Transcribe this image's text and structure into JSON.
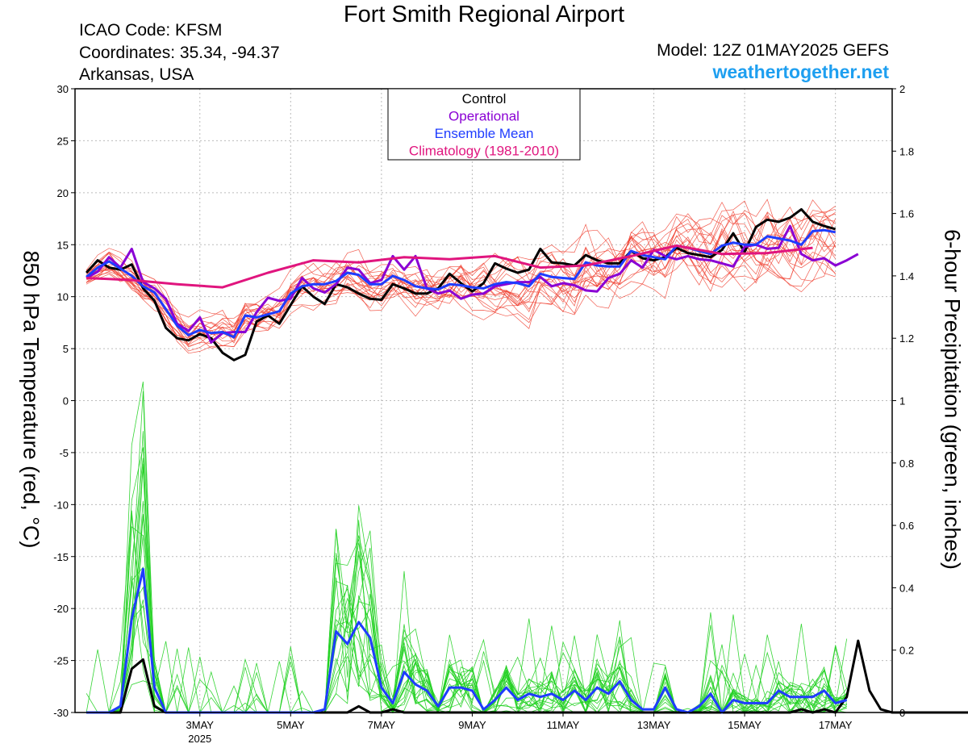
{
  "header": {
    "title": "Fort Smith Regional Airport",
    "icao": "ICAO Code: KFSM",
    "coordinates": "Coordinates: 35.34, -94.37",
    "region": "Arkansas, USA",
    "model": "Model: 12Z 01MAY2025 GEFS",
    "site": "weathertogether.net"
  },
  "chart_data": {
    "type": "line",
    "title": "Fort Smith Regional Airport",
    "ylabel_left": "850 hPa Temperature (red, °C)",
    "ylabel_right": "6-hour Precipitation (green, inches)",
    "ylim_left": [
      -30,
      30
    ],
    "ylim_right": [
      0,
      2
    ],
    "yticks_left": [
      "30",
      "25",
      "20",
      "15",
      "10",
      "5",
      "0",
      "-5",
      "-10",
      "-15",
      "-20",
      "-25",
      "-30"
    ],
    "yticks_right": [
      "2",
      "1.8",
      "1.6",
      "1.4",
      "1.2",
      "1",
      "0.8",
      "0.6",
      "0.4",
      "0.2",
      "0"
    ],
    "x_start": "2025-05-01 12Z",
    "x_step_hours": 6,
    "x_ticks": [
      {
        "label": "3MAY",
        "sub": "2025",
        "hours": 60
      },
      {
        "label": "5MAY",
        "hours": 108
      },
      {
        "label": "7MAY",
        "hours": 156
      },
      {
        "label": "9MAY",
        "hours": 204
      },
      {
        "label": "11MAY",
        "hours": 252
      },
      {
        "label": "13MAY",
        "hours": 300
      },
      {
        "label": "15MAY",
        "hours": 348
      },
      {
        "label": "17MAY",
        "hours": 396
      }
    ],
    "grid": true,
    "legend": {
      "position": "top-center",
      "entries": [
        {
          "label": "Control",
          "color": "#000000"
        },
        {
          "label": "Operational",
          "color": "#8a00d4"
        },
        {
          "label": "Ensemble Mean",
          "color": "#1e3cff"
        },
        {
          "label": "Climatology (1981-2010)",
          "color": "#e0157e"
        }
      ]
    },
    "colors": {
      "members_temp": "#f04030",
      "members_precip": "#20d020"
    },
    "series": [
      {
        "name": "Control",
        "kind": "temp",
        "color": "#000000",
        "values": [
          12.3,
          13.5,
          12.8,
          12.6,
          13.1,
          10.8,
          9.6,
          7.0,
          6.0,
          5.8,
          6.4,
          6.0,
          4.6,
          3.9,
          4.4,
          7.6,
          8.2,
          7.4,
          9.2,
          11.0,
          10.0,
          9.3,
          11.2,
          10.9,
          10.3,
          9.8,
          9.7,
          11.2,
          10.8,
          10.3,
          10.3,
          10.8,
          12.2,
          11.3,
          10.5,
          11.3,
          13.2,
          12.7,
          12.3,
          12.6,
          14.6,
          13.3,
          13.2,
          13.0,
          14.0,
          13.5,
          13.2,
          13.2,
          14.4,
          13.7,
          13.5,
          13.8,
          14.7,
          14.2,
          14.0,
          13.8,
          14.5,
          16.1,
          14.3,
          16.7,
          17.4,
          17.2,
          17.6,
          18.4,
          17.2,
          16.8,
          16.5
        ]
      },
      {
        "name": "Operational",
        "kind": "temp",
        "color": "#8a00d4",
        "values": [
          11.8,
          12.4,
          13.8,
          12.8,
          14.6,
          11.4,
          10.8,
          9.8,
          7.4,
          6.7,
          8.0,
          5.6,
          6.5,
          6.6,
          6.6,
          8.5,
          9.9,
          9.6,
          9.8,
          11.8,
          10.8,
          10.4,
          11.2,
          12.8,
          12.6,
          11.3,
          11.6,
          13.9,
          12.6,
          13.9,
          10.8,
          10.3,
          10.6,
          9.8,
          10.2,
          10.3,
          11.0,
          11.2,
          11.4,
          11.4,
          11.9,
          11.0,
          11.3,
          11.1,
          10.6,
          10.5,
          11.8,
          12.2,
          13.5,
          12.8,
          14.5,
          13.9,
          13.6,
          13.9,
          13.6,
          13.5,
          13.2,
          12.9,
          14.8,
          15.0,
          14.6,
          14.7,
          16.8,
          14.1,
          13.5,
          13.7,
          13.0,
          13.5,
          14.1
        ]
      },
      {
        "name": "Ensemble Mean",
        "kind": "temp",
        "color": "#1e3cff",
        "values": [
          11.9,
          12.8,
          13.4,
          12.7,
          12.0,
          11.0,
          10.4,
          8.8,
          7.2,
          6.3,
          6.8,
          6.5,
          6.6,
          6.1,
          8.2,
          8.0,
          8.3,
          8.6,
          10.3,
          11.0,
          11.2,
          11.2,
          11.5,
          12.3,
          12.1,
          11.2,
          11.2,
          12.0,
          11.6,
          11.0,
          10.8,
          10.7,
          11.2,
          11.1,
          10.9,
          10.8,
          11.2,
          11.4,
          11.3,
          11.0,
          12.2,
          11.9,
          11.8,
          11.7,
          13.3,
          13.0,
          12.9,
          12.9,
          14.4,
          14.0,
          13.8,
          13.6,
          14.9,
          14.7,
          14.4,
          14.1,
          14.9,
          15.2,
          15.0,
          15.0,
          15.8,
          15.6,
          15.4,
          15.0,
          16.3,
          16.4,
          16.2
        ]
      },
      {
        "name": "Climatology (1981-2010)",
        "kind": "temp",
        "color": "#e0157e",
        "values": [
          11.8,
          11.6,
          11.2,
          10.9,
          12.3,
          13.5,
          13.3,
          13.8,
          13.6,
          13.9,
          12.8,
          13.0,
          13.9,
          14.9,
          14.1,
          14.2,
          14.7
        ]
      },
      {
        "name": "Control",
        "kind": "precip",
        "color": "#000000",
        "values": [
          0,
          0,
          0,
          0,
          0.14,
          0.17,
          0.02,
          0,
          0,
          0,
          0,
          0,
          0,
          0,
          0,
          0,
          0,
          0,
          0,
          0,
          0,
          0,
          0,
          0,
          0.02,
          0,
          0,
          0.01,
          0,
          0,
          0,
          0,
          0,
          0,
          0,
          0,
          0,
          0,
          0,
          0,
          0,
          0,
          0,
          0,
          0,
          0,
          0,
          0,
          0,
          0,
          0,
          0,
          0,
          0,
          0,
          0,
          0,
          0,
          0,
          0,
          0,
          0,
          0,
          0.01,
          0,
          0.01,
          0,
          0.05,
          0.23,
          0.07,
          0.01,
          0,
          0,
          0,
          0,
          0,
          0,
          0,
          0,
          0,
          0,
          0,
          0,
          0
        ]
      },
      {
        "name": "Ensemble Mean",
        "kind": "precip",
        "color": "#1e3cff",
        "values": [
          0,
          0,
          0,
          0.02,
          0.3,
          0.46,
          0.08,
          0,
          0,
          0,
          0,
          0,
          0,
          0,
          0,
          0,
          0,
          0,
          0,
          0,
          0,
          0.01,
          0.26,
          0.22,
          0.29,
          0.24,
          0.08,
          0.03,
          0.13,
          0.09,
          0.07,
          0.02,
          0.08,
          0.08,
          0.07,
          0.01,
          0.04,
          0.08,
          0.04,
          0.06,
          0.05,
          0.06,
          0.04,
          0.07,
          0.04,
          0.08,
          0.06,
          0.1,
          0.04,
          0.01,
          0.01,
          0.08,
          0.01,
          0,
          0.02,
          0.06,
          0,
          0.04,
          0.03,
          0.03,
          0.03,
          0.07,
          0.05,
          0.05,
          0.05,
          0.07,
          0.03,
          0.04
        ]
      }
    ]
  }
}
